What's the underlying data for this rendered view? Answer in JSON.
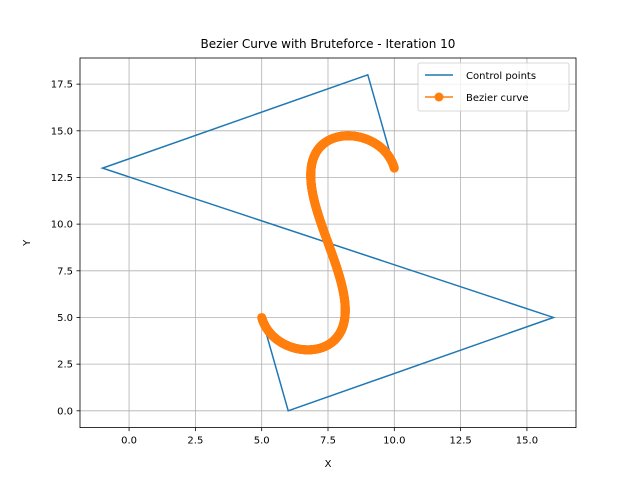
{
  "chart_data": {
    "type": "line",
    "title": "Bezier Curve with Bruteforce - Iteration 10",
    "xlabel": "X",
    "ylabel": "Y",
    "xlim": [
      -1.85,
      16.85
    ],
    "ylim": [
      -0.9,
      18.9
    ],
    "xticks": [
      0.0,
      2.5,
      5.0,
      7.5,
      10.0,
      12.5,
      15.0
    ],
    "xtick_labels": [
      "0.0",
      "2.5",
      "5.0",
      "7.5",
      "10.0",
      "12.5",
      "15.0"
    ],
    "yticks": [
      0.0,
      2.5,
      5.0,
      7.5,
      10.0,
      12.5,
      15.0,
      17.5
    ],
    "ytick_labels": [
      "0.0",
      "2.5",
      "5.0",
      "7.5",
      "10.0",
      "12.5",
      "15.0",
      "17.5"
    ],
    "grid": true,
    "legend_position": "top-right",
    "control_polygon": [
      [
        10,
        13
      ],
      [
        9,
        18
      ],
      [
        -1,
        13
      ],
      [
        16,
        5
      ],
      [
        6,
        0
      ],
      [
        5,
        5
      ]
    ],
    "series": [
      {
        "name": "Control points",
        "kind": "polyline",
        "color": "#1f77b4"
      },
      {
        "name": "Bezier curve",
        "kind": "marker-line",
        "color": "#ff7f0e",
        "samples": 1025
      }
    ]
  }
}
